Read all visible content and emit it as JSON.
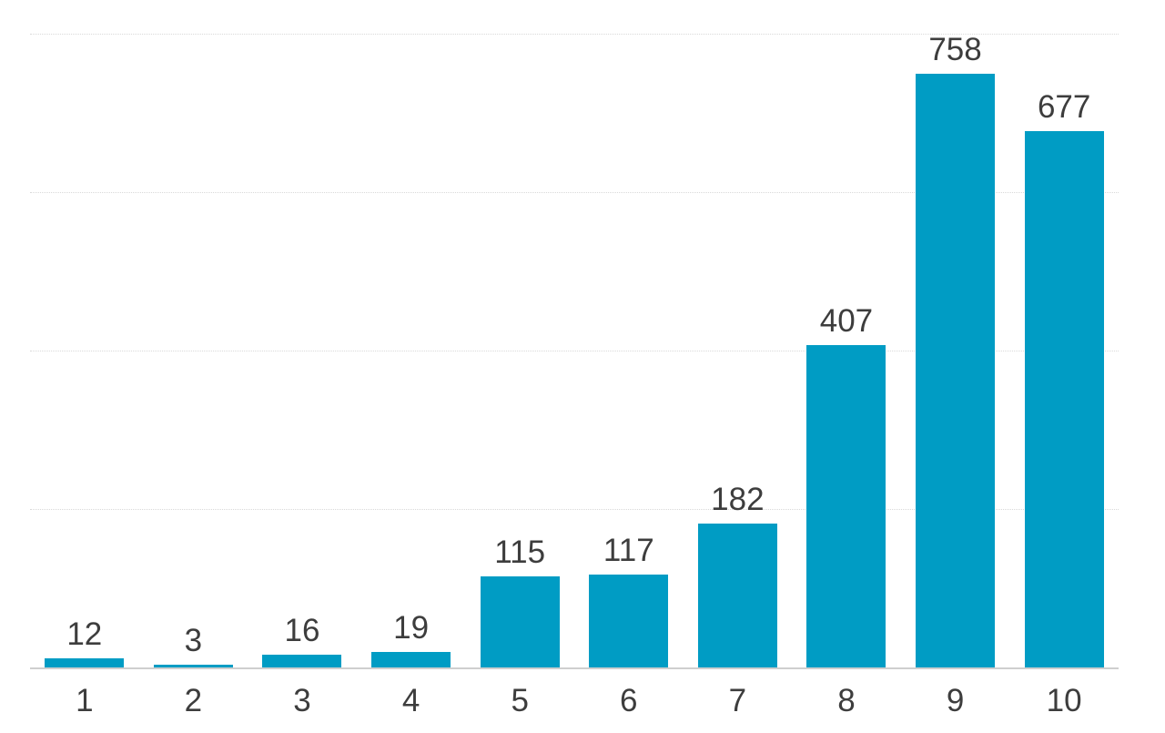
{
  "chart_data": {
    "type": "bar",
    "categories": [
      "1",
      "2",
      "3",
      "4",
      "5",
      "6",
      "7",
      "8",
      "9",
      "10"
    ],
    "values": [
      12,
      3,
      16,
      19,
      115,
      117,
      182,
      407,
      758,
      677
    ],
    "value_labels": [
      "12",
      "3",
      "16",
      "19",
      "115",
      "117",
      "182",
      "407",
      "758",
      "677"
    ],
    "ylim": [
      0,
      800
    ],
    "grid_step": 200,
    "grid": "horizontal-dotted",
    "legend_position": "none",
    "colors": {
      "bar": "#009cc4",
      "label_text": "#3d3d3d",
      "gridline": "#d9d9d9",
      "axis_line": "#cfcfcf",
      "background": "#ffffff"
    }
  }
}
